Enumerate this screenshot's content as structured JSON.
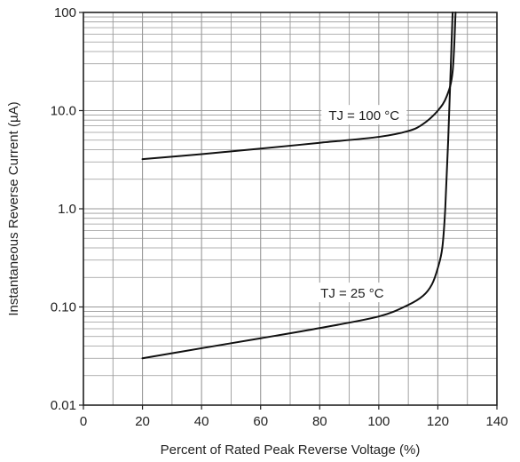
{
  "chart_data": {
    "type": "line",
    "title": "",
    "xlabel": "Percent of Rated Peak Reverse Voltage (%)",
    "ylabel": "Instantaneous Reverse Current (µA)",
    "xlim": [
      0,
      140
    ],
    "ylim": [
      0.01,
      100
    ],
    "yscale": "log",
    "grid": true,
    "legend": "none",
    "x_ticks": [
      "0",
      "20",
      "40",
      "60",
      "80",
      "100",
      "120",
      "140"
    ],
    "y_ticks": [
      "0.01",
      "0.10",
      "1.0",
      "10.0",
      "100"
    ],
    "colors": {
      "grid": "#999999",
      "line": "#111111",
      "axis": "#222222"
    },
    "series": [
      {
        "label": "TJ = 100 °C",
        "x": [
          20,
          40,
          60,
          80,
          100,
          110,
          115,
          120,
          123,
          125,
          126
        ],
        "y": [
          3.2,
          3.6,
          4.1,
          4.7,
          5.4,
          6.2,
          7.3,
          10.0,
          14.0,
          25.0,
          100.0
        ]
      },
      {
        "label": "TJ = 25 °C",
        "x": [
          20,
          40,
          60,
          80,
          100,
          110,
          115,
          118,
          120,
          121.5,
          122.5,
          123.5,
          125
        ],
        "y": [
          0.03,
          0.038,
          0.048,
          0.061,
          0.08,
          0.105,
          0.13,
          0.17,
          0.25,
          0.4,
          1.0,
          5.0,
          100.0
        ]
      }
    ]
  }
}
